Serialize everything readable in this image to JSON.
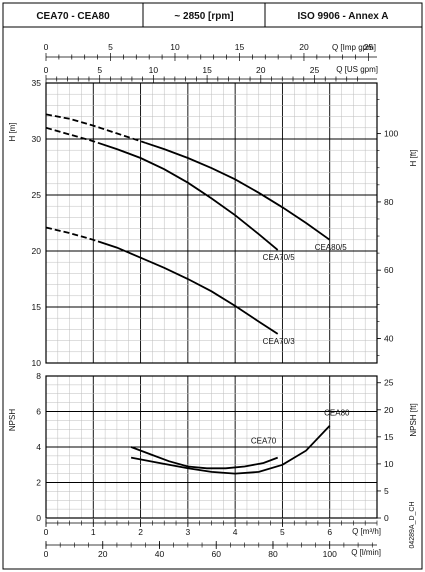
{
  "header": {
    "model": "CEA70 - CEA80",
    "speed": "~ 2850 [rpm]",
    "standard": "ISO 9906 - Annex A"
  },
  "footer_code": "04289A_D_CH",
  "chart_data": [
    {
      "type": "line",
      "name": "head",
      "top_axes": [
        {
          "label": "Q [Imp gpm]",
          "min": 0,
          "max": 29.5,
          "ticks": [
            0,
            5,
            10,
            15,
            20,
            25
          ]
        },
        {
          "label": "Q [US gpm]",
          "min": 0,
          "max": 29.5,
          "ticks": [
            0,
            5,
            10,
            15,
            20,
            25
          ]
        }
      ],
      "x_scale": {
        "label": "Q [m³/h]",
        "min": 0,
        "max": 7
      },
      "ylabel": "H [m]",
      "ylim": [
        10,
        35
      ],
      "yticks": [
        10,
        15,
        20,
        25,
        30,
        35
      ],
      "y2label": "H [ft]",
      "y2ticks": [
        40,
        60,
        80,
        100
      ],
      "grid": true,
      "series": [
        {
          "name": "CEA80/5",
          "dashed_until": 2.1,
          "x": [
            0,
            0.5,
            1.0,
            1.5,
            2.0,
            2.5,
            3.0,
            3.5,
            4.0,
            4.5,
            5.0,
            5.5,
            6.0
          ],
          "y": [
            32.2,
            31.8,
            31.2,
            30.5,
            29.8,
            29.1,
            28.3,
            27.4,
            26.4,
            25.2,
            23.9,
            22.5,
            21.0
          ]
        },
        {
          "name": "CEA70/5",
          "dashed_until": 1.1,
          "x": [
            0,
            0.5,
            1.0,
            1.5,
            2.0,
            2.5,
            3.0,
            3.5,
            4.0,
            4.5,
            4.9
          ],
          "y": [
            31.0,
            30.4,
            29.8,
            29.1,
            28.3,
            27.3,
            26.1,
            24.7,
            23.2,
            21.5,
            20.1
          ]
        },
        {
          "name": "CEA70/3",
          "dashed_until": 1.1,
          "x": [
            0,
            0.5,
            1.0,
            1.5,
            2.0,
            2.5,
            3.0,
            3.5,
            4.0,
            4.5,
            4.9
          ],
          "y": [
            22.1,
            21.6,
            21.0,
            20.3,
            19.4,
            18.5,
            17.5,
            16.4,
            15.1,
            13.7,
            12.6
          ]
        }
      ]
    },
    {
      "type": "line",
      "name": "npsh",
      "xlabel": "Q [m³/h]",
      "xlim": [
        0,
        7
      ],
      "xticks": [
        0,
        1,
        2,
        3,
        4,
        5,
        6
      ],
      "x2label": "Q [l/min]",
      "x2ticks": [
        0,
        20,
        40,
        60,
        80,
        100
      ],
      "ylabel": "NPSH",
      "ylim": [
        0,
        8
      ],
      "yticks": [
        0,
        2,
        4,
        6,
        8
      ],
      "y2label": "NPSH [ft]",
      "y2ticks": [
        0,
        5,
        10,
        15,
        20,
        25
      ],
      "grid": true,
      "series": [
        {
          "name": "CEA70",
          "x": [
            1.8,
            2.2,
            2.6,
            3.0,
            3.4,
            3.8,
            4.2,
            4.6,
            4.9
          ],
          "y": [
            4.0,
            3.6,
            3.2,
            2.9,
            2.8,
            2.8,
            2.9,
            3.1,
            3.4
          ]
        },
        {
          "name": "CEA80",
          "x": [
            1.8,
            2.4,
            3.0,
            3.5,
            4.0,
            4.5,
            5.0,
            5.5,
            6.0
          ],
          "y": [
            3.4,
            3.1,
            2.8,
            2.6,
            2.5,
            2.6,
            3.0,
            3.8,
            5.2
          ]
        }
      ]
    }
  ]
}
